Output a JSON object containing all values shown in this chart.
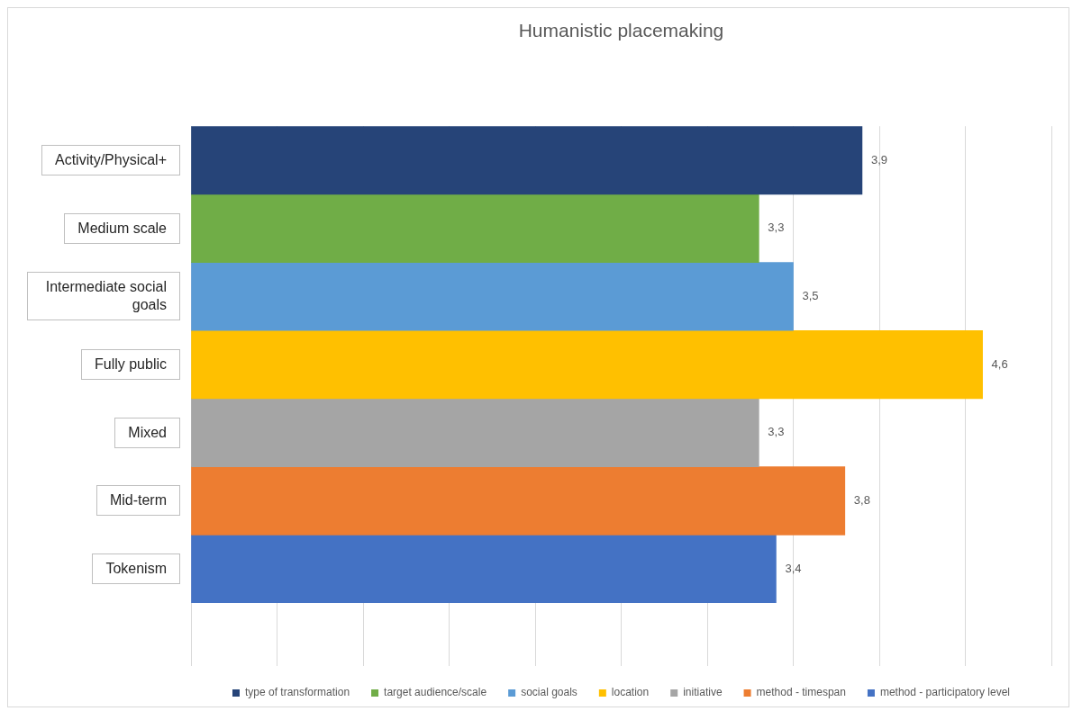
{
  "chart_data": {
    "type": "bar",
    "orientation": "horizontal",
    "title": "Humanistic placemaking",
    "categories": [
      "Activity/Physical+",
      "Medium scale",
      "Intermediate social goals",
      "Fully public",
      "Mixed",
      "Mid-term",
      "Tokenism"
    ],
    "series": [
      {
        "name": "type of transformation",
        "color": "#264478",
        "values": [
          3.9,
          null,
          null,
          null,
          null,
          null,
          null
        ],
        "value_labels": [
          "3,9",
          null,
          null,
          null,
          null,
          null,
          null
        ]
      },
      {
        "name": "target audience/scale",
        "color": "#70ad47",
        "values": [
          null,
          3.3,
          null,
          null,
          null,
          null,
          null
        ],
        "value_labels": [
          null,
          "3,3",
          null,
          null,
          null,
          null,
          null
        ]
      },
      {
        "name": "social goals",
        "color": "#5b9bd5",
        "values": [
          null,
          null,
          3.5,
          null,
          null,
          null,
          null
        ],
        "value_labels": [
          null,
          null,
          "3,5",
          null,
          null,
          null,
          null
        ]
      },
      {
        "name": "location",
        "color": "#ffc000",
        "values": [
          null,
          null,
          null,
          4.6,
          null,
          null,
          null
        ],
        "value_labels": [
          null,
          null,
          null,
          "4,6",
          null,
          null,
          null
        ]
      },
      {
        "name": "initiative",
        "color": "#a5a5a5",
        "values": [
          null,
          null,
          null,
          null,
          3.3,
          null,
          null
        ],
        "value_labels": [
          null,
          null,
          null,
          null,
          "3,3",
          null,
          null
        ]
      },
      {
        "name": "method - timespan",
        "color": "#ed7d31",
        "values": [
          null,
          null,
          null,
          null,
          null,
          3.8,
          null
        ],
        "value_labels": [
          null,
          null,
          null,
          null,
          null,
          "3,8",
          null
        ]
      },
      {
        "name": "method - participatory level",
        "color": "#4472c4",
        "values": [
          null,
          null,
          null,
          null,
          null,
          null,
          3.4
        ],
        "value_labels": [
          null,
          null,
          null,
          null,
          null,
          null,
          "3,4"
        ]
      }
    ],
    "xlim": [
      0,
      5
    ],
    "xticks": [
      {
        "value": 0,
        "label": null
      },
      {
        "value": 0.5,
        "label": null
      },
      {
        "value": 1,
        "label": null
      },
      {
        "value": 1.5,
        "label": null
      },
      {
        "value": 2,
        "label": null
      },
      {
        "value": 2.5,
        "label": null
      },
      {
        "value": 3,
        "label": null
      },
      {
        "value": 3.5,
        "label": null
      },
      {
        "value": 4,
        "label": null
      },
      {
        "value": 4.5,
        "label": null
      },
      {
        "value": 5,
        "label": null
      }
    ],
    "tick_labels": "y",
    "grid": "x",
    "legend": "bottom"
  }
}
